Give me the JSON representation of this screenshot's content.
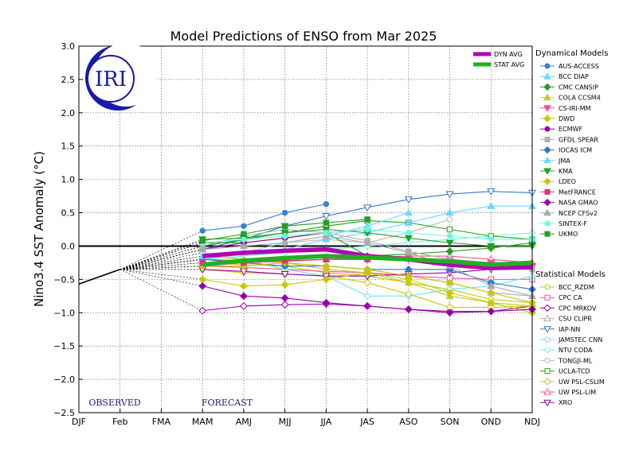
{
  "chart_data": {
    "type": "line",
    "title": "Model Predictions of ENSO from Mar 2025",
    "ylabel": "Nino3.4 SST Anomaly (°C)",
    "xlabel": "",
    "categories": [
      "DJF",
      "Feb",
      "FMA",
      "MAM",
      "AMJ",
      "MJJ",
      "JJA",
      "JAS",
      "ASO",
      "SON",
      "OND",
      "NDJ"
    ],
    "ylim": [
      -2.5,
      3.0
    ],
    "yticks": [
      "3.0",
      "2.5",
      "2.0",
      "1.5",
      "1.0",
      "0.5",
      "0.0",
      "−0.5",
      "−1.0",
      "−1.5",
      "−2.0",
      "−2.5"
    ],
    "grid": true,
    "observed": {
      "label": "OBSERVED",
      "x": [
        "DJF",
        "Feb"
      ],
      "values": [
        -0.57,
        -0.35
      ]
    },
    "forecast_label": "FORECAST",
    "logo_text": "IRI",
    "averages": [
      {
        "name": "DYN AVG",
        "color": "#b300b3",
        "values": [
          -0.15,
          -0.1,
          -0.07,
          -0.05,
          -0.15,
          -0.2,
          -0.28,
          -0.33,
          -0.32
        ]
      },
      {
        "name": "STAT AVG",
        "color": "#22b022",
        "values": [
          -0.28,
          -0.22,
          -0.18,
          -0.15,
          -0.17,
          -0.2,
          -0.23,
          -0.28,
          -0.25
        ]
      }
    ],
    "dynamical_heading": "Dynamical Models",
    "statistical_heading": "Statistical Models",
    "dynamical_models": [
      {
        "name": "AUS-ACCESS",
        "color": "#3a7fd5",
        "marker": "circle",
        "values": [
          0.23,
          0.3,
          0.5,
          0.63
        ]
      },
      {
        "name": "BCC DIAP",
        "color": "#66d9ff",
        "marker": "tri-up",
        "values": [
          -0.2,
          -0.1,
          -0.05,
          0.1,
          0.2,
          0.35,
          0.5,
          0.6,
          0.6
        ]
      },
      {
        "name": "CMC CANSIP",
        "color": "#22a022",
        "marker": "diamond",
        "values": [
          0.05,
          0.05,
          0.12,
          0.2,
          -0.15,
          -0.12,
          -0.08,
          -0.03,
          0.05
        ]
      },
      {
        "name": "COLA CCSM4",
        "color": "#c8c820",
        "marker": "tri-up",
        "values": [
          -0.15,
          -0.2,
          -0.25,
          -0.35,
          -0.4,
          -0.55,
          -0.75,
          -0.85,
          -0.9
        ]
      },
      {
        "name": "CS-IRI-MM",
        "color": "#ff4d94",
        "marker": "tri-down",
        "values": [
          -0.3,
          -0.25,
          -0.22,
          -0.2,
          -0.2,
          -0.2,
          -0.2,
          -0.25,
          -0.3
        ]
      },
      {
        "name": "DWD",
        "color": "#c8c800",
        "marker": "diamond",
        "values": [
          -0.5,
          -0.6,
          -0.58,
          -0.5,
          -0.4,
          -0.5,
          -0.7,
          -0.85,
          -1.0
        ]
      },
      {
        "name": "ECMWF",
        "color": "#9900aa",
        "marker": "circle",
        "values": [
          -0.05,
          0.05,
          0.12,
          0.2,
          0.25
        ]
      },
      {
        "name": "GFDL SPEAR",
        "color": "#b0b0b0",
        "marker": "square",
        "values": [
          0.0,
          0.15,
          0.25,
          0.2,
          0.08,
          -0.08,
          -0.2,
          -0.3,
          -0.35
        ]
      },
      {
        "name": "IOCAS ICM",
        "color": "#3377cc",
        "marker": "diamond",
        "values": [
          -0.2,
          -0.25,
          -0.3,
          -0.3,
          -0.35,
          -0.35,
          -0.35,
          -0.55,
          -0.65
        ]
      },
      {
        "name": "JMA",
        "color": "#66e0ff",
        "marker": "tri-up",
        "values": [
          -0.15,
          -0.1,
          0.05,
          0.15,
          0.3,
          0.5
        ]
      },
      {
        "name": "KMA",
        "color": "#22a022",
        "marker": "tri-down",
        "values": [
          0.1,
          0.12,
          0.2,
          0.25,
          0.2,
          0.12,
          0.05,
          0.0,
          0.0
        ]
      },
      {
        "name": "LDEO",
        "color": "#c8c800",
        "marker": "diamond",
        "values": [
          -0.3,
          -0.3,
          -0.25,
          -0.3,
          -0.35,
          -0.45,
          -0.55,
          -0.7,
          -0.85
        ]
      },
      {
        "name": "MetFRANCE",
        "color": "#e0307a",
        "marker": "square",
        "values": [
          -0.25,
          -0.25,
          -0.22,
          -0.2,
          -0.2
        ]
      },
      {
        "name": "NASA GMAO",
        "color": "#9900aa",
        "marker": "diamond",
        "values": [
          -0.6,
          -0.75,
          -0.78,
          -0.85,
          -0.9,
          -0.95,
          -1.0,
          -0.98,
          -0.95
        ]
      },
      {
        "name": "NCEP CFSv2",
        "color": "#aaaaaa",
        "marker": "tri-up",
        "values": [
          -0.05,
          0.0,
          0.05,
          0.15,
          0.05,
          -0.1,
          -0.3,
          -0.6,
          -0.75
        ]
      },
      {
        "name": "SINTEX-F",
        "color": "#66ffdd",
        "marker": "circle",
        "values": [
          0.05,
          0.1,
          0.15,
          0.2,
          0.25,
          0.2,
          0.15,
          0.1,
          0.1
        ]
      },
      {
        "name": "UKMO",
        "color": "#22a022",
        "marker": "square",
        "values": [
          0.08,
          0.18,
          0.3,
          0.35,
          0.4
        ]
      }
    ],
    "statistical_models": [
      {
        "name": "BCC_RZDM",
        "color": "#c8c800",
        "marker": "circle",
        "values": [
          -0.25,
          -0.28,
          -0.3,
          -0.4,
          -0.45,
          -0.55,
          -0.65,
          -0.8,
          -0.85
        ]
      },
      {
        "name": "CPC CA",
        "color": "#ff4d94",
        "marker": "square",
        "values": [
          -0.3,
          -0.32,
          -0.35,
          -0.38,
          -0.4,
          -0.45,
          -0.48,
          -0.5,
          -0.5
        ]
      },
      {
        "name": "CPC MRKOV",
        "color": "#9900aa",
        "marker": "diamond",
        "values": [
          -0.97,
          -0.9,
          -0.88,
          -0.87,
          -0.9,
          -0.95,
          -0.98,
          -0.98,
          -0.9
        ]
      },
      {
        "name": "CSU CLIPR",
        "color": "#aaaaaa",
        "marker": "tri-up",
        "values": [
          -0.2,
          -0.22,
          -0.25,
          -0.3,
          -0.35,
          -0.45,
          -0.55,
          -0.7,
          -0.75
        ]
      },
      {
        "name": "IAP-NN",
        "color": "#3377cc",
        "marker": "tri-down",
        "values": [
          -0.05,
          0.1,
          0.3,
          0.45,
          0.58,
          0.7,
          0.78,
          0.82,
          0.8
        ]
      },
      {
        "name": "JAMSTEC CNN",
        "color": "#66e0ff",
        "marker": "circle",
        "values": [
          -0.1,
          -0.2,
          -0.35,
          -0.45,
          -0.75,
          -0.75,
          -0.65,
          -0.6,
          -0.45
        ]
      },
      {
        "name": "NTU CODA",
        "color": "#66ffdd",
        "marker": "circle",
        "values": [
          -0.2,
          -0.15,
          -0.1,
          -0.05,
          0.0,
          0.05,
          0.1,
          0.15,
          0.2
        ]
      },
      {
        "name": "TONGJI-ML",
        "color": "#bbbbbb",
        "marker": "circle",
        "values": [
          -0.05,
          0.0,
          0.05,
          0.1,
          0.05,
          0.2,
          0.4
        ]
      },
      {
        "name": "UCLA-TCD",
        "color": "#22a022",
        "marker": "square",
        "values": [
          0.0,
          0.1,
          0.2,
          0.3,
          0.38,
          0.35,
          0.25,
          0.15,
          0.1
        ]
      },
      {
        "name": "UW PSL-CSLIM",
        "color": "#c8c800",
        "marker": "diamond",
        "values": [
          -0.35,
          -0.4,
          -0.42,
          -0.45,
          -0.55,
          -0.72,
          -0.92,
          -0.92,
          -0.9
        ]
      },
      {
        "name": "UW PSL-LIM",
        "color": "#ff4d94",
        "marker": "tri-up",
        "values": [
          -0.2,
          -0.22,
          -0.23,
          -0.2,
          -0.17,
          -0.15,
          -0.15,
          -0.2,
          -0.25
        ]
      },
      {
        "name": "XRO",
        "color": "#9900aa",
        "marker": "tri-down",
        "values": [
          -0.35,
          -0.38,
          -0.42,
          -0.45,
          -0.45,
          -0.42,
          -0.4,
          -0.35,
          -0.3
        ]
      }
    ]
  }
}
